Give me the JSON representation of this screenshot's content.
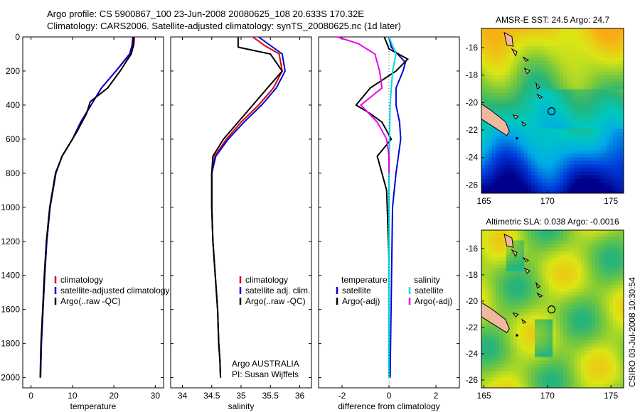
{
  "header": {
    "title_line1": "Argo profile: CS 5900867_100 23-Jun-2008 20080625_108 20.633S 170.32E",
    "title_line2": "Climatology: CARS2006. Satellite-adjusted climatology: synTS_20080625.nc (1d later)"
  },
  "side_label": "CSIRO 03-Jul-2008 10:30:54",
  "chart_data": [
    {
      "id": "temperature",
      "type": "line",
      "xlabel": "temperature",
      "xlim": [
        -2,
        32
      ],
      "ylim": [
        0,
        2060
      ],
      "y_inverted": true,
      "xticks": [
        0,
        10,
        20,
        30
      ],
      "yticks": [
        0,
        200,
        400,
        600,
        800,
        1000,
        1200,
        1400,
        1600,
        1800,
        2000
      ],
      "legend": {
        "position": "center-left",
        "entries": [
          "climatology",
          "satellite-adjusted climatology",
          "Argo(..raw -QC)"
        ],
        "colors": [
          "#e00000",
          "#0000dd",
          "#000000"
        ]
      },
      "series": [
        {
          "name": "climatology",
          "color": "#e00000",
          "x": [
            25.0,
            24.8,
            24.0,
            20.5,
            17.0,
            14.5,
            12.0,
            10.0,
            7.5,
            6.0,
            4.6,
            3.8,
            3.3,
            2.9,
            2.7,
            2.5,
            2.4,
            2.3
          ],
          "y": [
            0,
            50,
            100,
            200,
            300,
            400,
            500,
            600,
            700,
            800,
            1000,
            1200,
            1400,
            1600,
            1700,
            1800,
            1900,
            2000
          ]
        },
        {
          "name": "satellite-adjusted climatology",
          "color": "#0000dd",
          "x": [
            24.6,
            24.4,
            23.8,
            20.5,
            17.0,
            14.5,
            12.0,
            10.0,
            7.5,
            6.0,
            4.6,
            3.8,
            3.3,
            2.9,
            2.7,
            2.5,
            2.4,
            2.3
          ],
          "y": [
            0,
            50,
            100,
            200,
            300,
            400,
            500,
            600,
            700,
            800,
            1000,
            1200,
            1400,
            1600,
            1700,
            1800,
            1900,
            2000
          ]
        },
        {
          "name": "Argo(..raw -QC)",
          "color": "#000000",
          "x": [
            24.7,
            24.7,
            24.2,
            21.5,
            18.5,
            14.3,
            13.4,
            11.0,
            7.5,
            5.9,
            4.5,
            3.7,
            3.2,
            2.8,
            2.6,
            2.4,
            2.3,
            2.2
          ],
          "y": [
            0,
            50,
            100,
            200,
            300,
            380,
            450,
            560,
            700,
            800,
            1000,
            1200,
            1400,
            1600,
            1700,
            1800,
            1900,
            2000
          ]
        }
      ]
    },
    {
      "id": "salinity",
      "type": "line",
      "xlabel": "salinity",
      "xlim": [
        33.8,
        36.2
      ],
      "ylim": [
        0,
        2060
      ],
      "y_inverted": true,
      "xticks": [
        34,
        34.5,
        35,
        35.5,
        36
      ],
      "legend": {
        "position": "center-right",
        "entries": [
          "climatology",
          "satellite adj. clim.",
          "Argo(..raw -QC)"
        ],
        "colors": [
          "#e00000",
          "#0000dd",
          "#000000"
        ]
      },
      "annotation": [
        "Argo AUSTRALIA",
        "PI: Susan Wijffels"
      ],
      "series": [
        {
          "name": "climatology",
          "color": "#e00000",
          "x": [
            35.2,
            35.4,
            35.65,
            35.7,
            35.55,
            35.3,
            35.0,
            34.75,
            34.55,
            34.5,
            34.5,
            34.52,
            34.56,
            34.6,
            34.62,
            34.64,
            34.65
          ],
          "y": [
            0,
            50,
            100,
            200,
            300,
            400,
            500,
            600,
            700,
            800,
            1000,
            1200,
            1400,
            1600,
            1800,
            1900,
            2000
          ]
        },
        {
          "name": "satellite adj. clim.",
          "color": "#0000dd",
          "x": [
            35.3,
            35.5,
            35.7,
            35.75,
            35.6,
            35.35,
            35.05,
            34.78,
            34.57,
            34.5,
            34.5,
            34.52,
            34.56,
            34.6,
            34.62,
            34.64,
            34.65
          ],
          "y": [
            0,
            50,
            100,
            200,
            300,
            400,
            500,
            600,
            700,
            800,
            1000,
            1200,
            1400,
            1600,
            1800,
            1900,
            2000
          ]
        },
        {
          "name": "Argo(..raw -QC)",
          "color": "#000000",
          "x": [
            34.95,
            34.95,
            35.5,
            35.7,
            35.45,
            35.2,
            34.95,
            34.7,
            34.52,
            34.5,
            34.5,
            34.52,
            34.56,
            34.6,
            34.62,
            34.64,
            34.65
          ],
          "y": [
            0,
            60,
            100,
            200,
            300,
            400,
            500,
            600,
            700,
            800,
            1000,
            1200,
            1400,
            1600,
            1800,
            1900,
            2000
          ]
        }
      ]
    },
    {
      "id": "difference",
      "type": "line",
      "xlabel": "difference from climatology",
      "xlim": [
        -3,
        3
      ],
      "ylim": [
        0,
        2060
      ],
      "y_inverted": true,
      "xticks": [
        -2,
        0,
        2
      ],
      "legend": {
        "position": "center",
        "temperature_header": "temperature",
        "salinity_header": "salinity",
        "entries": [
          "satellite",
          "Argo(-adj)",
          "satellite",
          "Argo(-adj)"
        ],
        "colors": [
          "#0000dd",
          "#000000",
          "#00dddd",
          "#ee00ee"
        ]
      },
      "series": [
        {
          "name": "temperature satellite",
          "color": "#0000dd",
          "x": [
            0.0,
            0.1,
            0.7,
            0.6,
            0.3,
            0.3,
            0.45,
            0.5,
            0.4,
            0.3,
            0.15,
            0.1,
            0.05
          ],
          "y": [
            0,
            60,
            150,
            200,
            300,
            400,
            500,
            600,
            700,
            800,
            1000,
            1500,
            2000
          ]
        },
        {
          "name": "temperature Argo(-adj)",
          "color": "#000000",
          "x": [
            -0.2,
            0.0,
            0.8,
            0.3,
            -0.8,
            -1.4,
            -0.8,
            -0.3,
            0.1,
            -0.5,
            -0.1,
            0.0,
            0.0
          ],
          "y": [
            0,
            70,
            130,
            200,
            300,
            400,
            450,
            500,
            600,
            700,
            900,
            1300,
            2000
          ]
        },
        {
          "name": "salinity satellite",
          "color": "#00dddd",
          "x": [
            0.0,
            0.3,
            0.15,
            0.05,
            0.0,
            0.0,
            0.0
          ],
          "y": [
            0,
            100,
            200,
            400,
            800,
            1500,
            2000
          ]
        },
        {
          "name": "salinity Argo(-adj)",
          "color": "#ee00ee",
          "x": [
            -2.2,
            -1.3,
            -0.6,
            -0.4,
            -0.3,
            -1.2,
            -0.5,
            -0.1,
            0.0,
            0.0
          ],
          "y": [
            0,
            40,
            100,
            200,
            300,
            400,
            500,
            600,
            700,
            800
          ]
        }
      ]
    },
    {
      "id": "sst_map",
      "type": "heatmap",
      "title": "AMSR-E SST: 24.5 Argo: 24.7",
      "xticks": [
        165,
        170,
        175
      ],
      "yticks": [
        -16,
        -18,
        -20,
        -22,
        -24,
        -26
      ],
      "xlim": [
        164.8,
        176
      ],
      "ylim": [
        -26.6,
        -14.6
      ],
      "argo_position": {
        "lon": 170.32,
        "lat": -20.633
      }
    },
    {
      "id": "sla_map",
      "type": "heatmap",
      "title": "Altimetric SLA: 0.038 Argo: -0.0016",
      "xticks": [
        165,
        170,
        175
      ],
      "yticks": [
        -16,
        -18,
        -20,
        -22,
        -24,
        -26
      ],
      "xlim": [
        164.8,
        176
      ],
      "ylim": [
        -26.6,
        -14.6
      ],
      "argo_position": {
        "lon": 170.32,
        "lat": -20.633
      }
    }
  ]
}
